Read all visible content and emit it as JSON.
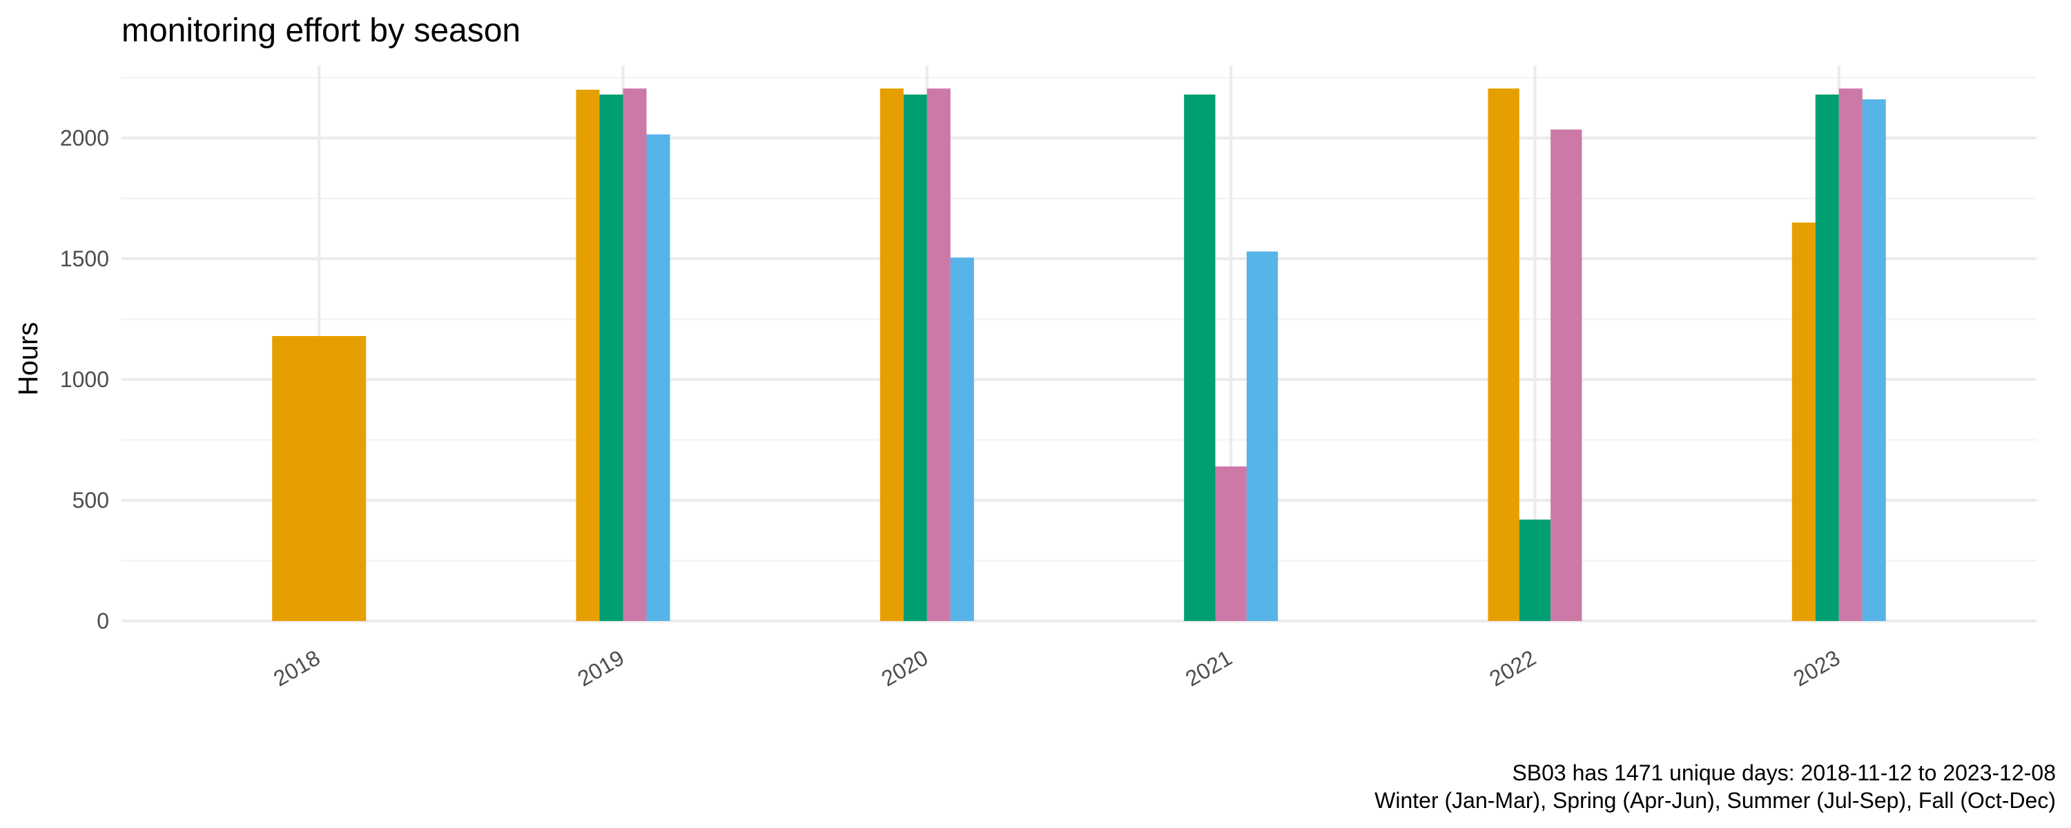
{
  "chart_data": {
    "type": "bar",
    "title": "monitoring effort by season",
    "xlabel": "",
    "ylabel": "Hours",
    "categories": [
      "2018",
      "2019",
      "2020",
      "2021",
      "2022",
      "2023"
    ],
    "ylim": [
      0,
      2300
    ],
    "yticks": [
      0,
      500,
      1000,
      1500,
      2000
    ],
    "grid": true,
    "legend": "none",
    "series": [
      {
        "color": "#E69F00",
        "values": [
          1180,
          2200,
          2205,
          null,
          2205,
          1650
        ]
      },
      {
        "color": "#009E73",
        "values": [
          null,
          2180,
          2180,
          2180,
          420,
          2180
        ]
      },
      {
        "color": "#CC79A7",
        "values": [
          null,
          2205,
          2205,
          640,
          2035,
          2205
        ]
      },
      {
        "color": "#56B4E9",
        "values": [
          null,
          2015,
          1505,
          1530,
          null,
          2160
        ]
      }
    ],
    "caption": [
      "SB03 has 1471 unique days: 2018-11-12 to 2023-12-08",
      "Winter (Jan-Mar), Spring (Apr-Jun), Summer (Jul-Sep), Fall (Oct-Dec)"
    ]
  }
}
